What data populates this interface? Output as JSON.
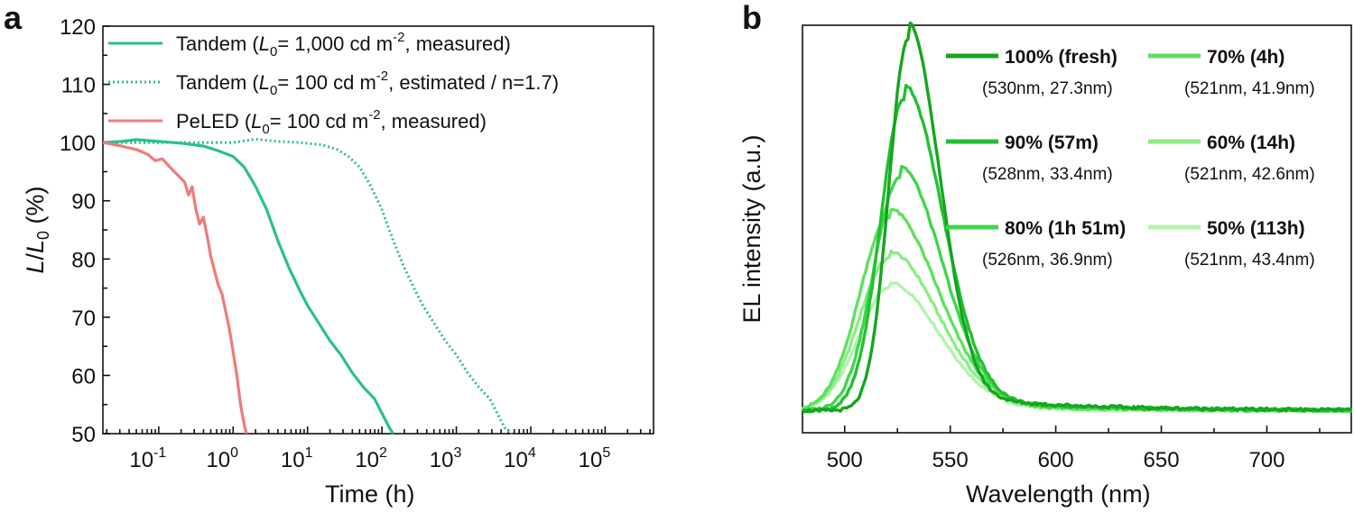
{
  "chart_data": [
    {
      "panel": "a",
      "type": "line",
      "xscale": "log",
      "xlabel": "Time (h)",
      "ylabel_parts": {
        "L": "L",
        "slash": "/",
        "L0": "L",
        "sub": "0",
        "unit": " (%)"
      },
      "ylim": [
        50,
        120
      ],
      "yticks": [
        "50",
        "60",
        "70",
        "80",
        "90",
        "100",
        "110",
        "120"
      ],
      "xticks": [
        {
          "base": "10",
          "exp": "-1"
        },
        {
          "base": "10",
          "exp": "0"
        },
        {
          "base": "10",
          "exp": "1"
        },
        {
          "base": "10",
          "exp": "2"
        },
        {
          "base": "10",
          "exp": "3"
        },
        {
          "base": "10",
          "exp": "4"
        },
        {
          "base": "10",
          "exp": "5"
        }
      ],
      "xlim_log10": [
        -1.75,
        5.65
      ],
      "legend": [
        {
          "pre": "Tandem (",
          "L": "L",
          "sub": "0",
          "mid": "= 1,000 cd m",
          "sup": "-2",
          "post": ", measured)",
          "color": "#2bbf8f",
          "style": "solid"
        },
        {
          "pre": "Tandem (",
          "L": "L",
          "sub": "0",
          "mid": "= 100 cd m",
          "sup": "-2",
          "post": ", estimated / n=1.7)",
          "color": "#2bbf8f",
          "style": "dotted"
        },
        {
          "pre": "PeLED (",
          "L": "L",
          "sub": "0",
          "mid": "= 100 cd m",
          "sup": "-2",
          "post": ", measured)",
          "color": "#ee7b7b",
          "style": "solid"
        }
      ],
      "series": [
        {
          "name": "Tandem measured",
          "color": "#2bbf8f",
          "style": "solid",
          "points": [
            [
              -1.75,
              100
            ],
            [
              -1.5,
              100.2
            ],
            [
              -1.3,
              100.5
            ],
            [
              -1.0,
              100.2
            ],
            [
              -0.7,
              99.9
            ],
            [
              -0.4,
              99.4
            ],
            [
              -0.2,
              98.6
            ],
            [
              0.0,
              97.6
            ],
            [
              0.15,
              95.8
            ],
            [
              0.3,
              92.5
            ],
            [
              0.45,
              88.5
            ],
            [
              0.6,
              83.2
            ],
            [
              0.75,
              78.5
            ],
            [
              0.9,
              74.5
            ],
            [
              1.0,
              72.0
            ],
            [
              1.15,
              69.0
            ],
            [
              1.3,
              66.0
            ],
            [
              1.45,
              63.5
            ],
            [
              1.6,
              60.5
            ],
            [
              1.75,
              58.0
            ],
            [
              1.9,
              56.0
            ],
            [
              2.0,
              53.5
            ],
            [
              2.1,
              51.0
            ],
            [
              2.15,
              50.0
            ]
          ]
        },
        {
          "name": "Tandem estimated",
          "color": "#2bbf8f",
          "style": "dotted",
          "points": [
            [
              -1.75,
              100
            ],
            [
              -1.2,
              100
            ],
            [
              -0.5,
              100
            ],
            [
              0,
              100
            ],
            [
              0.3,
              100.6
            ],
            [
              0.6,
              100.2
            ],
            [
              0.9,
              100
            ],
            [
              1.2,
              99.6
            ],
            [
              1.4,
              98.8
            ],
            [
              1.55,
              97.6
            ],
            [
              1.7,
              95.8
            ],
            [
              1.85,
              92.5
            ],
            [
              2.0,
              88.5
            ],
            [
              2.15,
              83.2
            ],
            [
              2.3,
              78.5
            ],
            [
              2.45,
              74.5
            ],
            [
              2.55,
              72.0
            ],
            [
              2.7,
              69.0
            ],
            [
              2.85,
              66.0
            ],
            [
              3.0,
              63.5
            ],
            [
              3.15,
              60.5
            ],
            [
              3.3,
              58.0
            ],
            [
              3.45,
              56.0
            ],
            [
              3.55,
              53.5
            ],
            [
              3.65,
              51.0
            ],
            [
              3.75,
              50.0
            ]
          ]
        },
        {
          "name": "PeLED measured",
          "color": "#ee7b7b",
          "style": "solid",
          "points": [
            [
              -1.75,
              100
            ],
            [
              -1.5,
              99.4
            ],
            [
              -1.3,
              98.8
            ],
            [
              -1.15,
              98.0
            ],
            [
              -1.05,
              96.9
            ],
            [
              -0.95,
              97.2
            ],
            [
              -0.85,
              95.8
            ],
            [
              -0.75,
              94.5
            ],
            [
              -0.65,
              93.2
            ],
            [
              -0.6,
              91.0
            ],
            [
              -0.55,
              92.4
            ],
            [
              -0.5,
              88.5
            ],
            [
              -0.45,
              86.0
            ],
            [
              -0.4,
              87.2
            ],
            [
              -0.35,
              84.0
            ],
            [
              -0.3,
              80.5
            ],
            [
              -0.25,
              78.0
            ],
            [
              -0.2,
              75.5
            ],
            [
              -0.15,
              74.0
            ],
            [
              -0.1,
              71.0
            ],
            [
              -0.05,
              68.0
            ],
            [
              0.0,
              64.0
            ],
            [
              0.05,
              60.0
            ],
            [
              0.1,
              55.0
            ],
            [
              0.15,
              51.5
            ],
            [
              0.18,
              50.0
            ]
          ]
        }
      ]
    },
    {
      "panel": "b",
      "type": "line",
      "xlabel": "Wavelength (nm)",
      "ylabel": "EL intensity (a.u.)",
      "xlim": [
        480,
        740
      ],
      "ylim": [
        0,
        1.1
      ],
      "xticks": [
        "500",
        "550",
        "600",
        "650",
        "700"
      ],
      "legend": [
        {
          "label": "100% (fresh)",
          "sub": "(530nm, 27.3nm)",
          "color": "#15a520"
        },
        {
          "label": "70% (4h)",
          "sub": "(521nm, 41.9nm)",
          "color": "#5fe060"
        },
        {
          "label": "90% (57m)",
          "sub": "(528nm, 33.4nm)",
          "color": "#22c030"
        },
        {
          "label": "60% (14h)",
          "sub": "(521nm, 42.6nm)",
          "color": "#8deb88"
        },
        {
          "label": "80% (1h 51m)",
          "sub": "(526nm, 36.9nm)",
          "color": "#3fd64a"
        },
        {
          "label": "50% (113h)",
          "sub": "(521nm, 43.4nm)",
          "color": "#b5f2ae"
        }
      ],
      "series": [
        {
          "name": "100% (fresh)",
          "peak_nm": 530,
          "fwhm_nm": 27.3,
          "amplitude": 1.0,
          "color": "#15a520"
        },
        {
          "name": "90% (57m)",
          "peak_nm": 528,
          "fwhm_nm": 33.4,
          "amplitude": 0.84,
          "color": "#22c030"
        },
        {
          "name": "80% (1h 51m)",
          "peak_nm": 526,
          "fwhm_nm": 36.9,
          "amplitude": 0.63,
          "color": "#3fd64a"
        },
        {
          "name": "70% (4h)",
          "peak_nm": 521,
          "fwhm_nm": 41.9,
          "amplitude": 0.52,
          "color": "#5fe060"
        },
        {
          "name": "60% (14h)",
          "peak_nm": 521,
          "fwhm_nm": 42.6,
          "amplitude": 0.41,
          "color": "#8deb88"
        },
        {
          "name": "50% (113h)",
          "peak_nm": 521,
          "fwhm_nm": 43.4,
          "amplitude": 0.33,
          "color": "#b5f2ae"
        }
      ]
    }
  ],
  "panels": {
    "a_label": "a",
    "b_label": "b"
  }
}
